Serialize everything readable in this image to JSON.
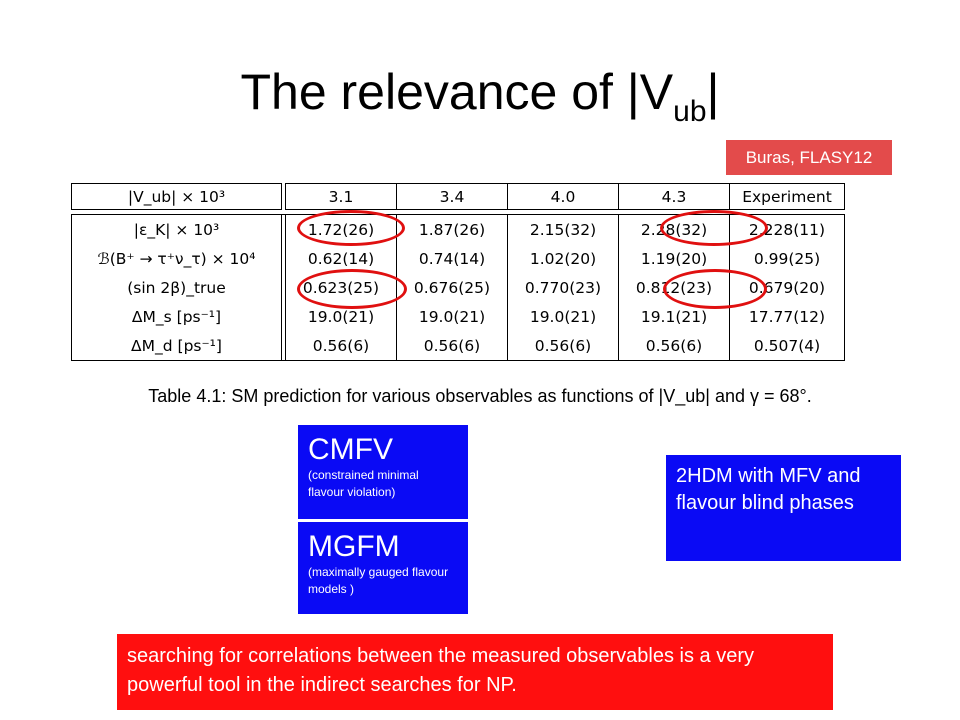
{
  "slide": {
    "title_main": "The relevance of |V",
    "title_sub": "ub",
    "title_end": "|",
    "citation": "Buras, FLASY12"
  },
  "table": {
    "header": [
      "|V_ub| × 10³",
      "3.1",
      "3.4",
      "4.0",
      "4.3",
      "Experiment"
    ],
    "rows": [
      {
        "label": "|ε_K| × 10³",
        "values": [
          "1.72(26)",
          "1.87(26)",
          "2.15(32)",
          "2.28(32)",
          "2.228(11)"
        ]
      },
      {
        "label": "ℬ(B⁺ → τ⁺ν_τ) × 10⁴",
        "values": [
          "0.62(14)",
          "0.74(14)",
          "1.02(20)",
          "1.19(20)",
          "0.99(25)"
        ]
      },
      {
        "label": "(sin 2β)_true",
        "values": [
          "0.623(25)",
          "0.676(25)",
          "0.770(23)",
          "0.812(23)",
          "0.679(20)"
        ]
      },
      {
        "label": "ΔM_s [ps⁻¹]",
        "values": [
          "19.0(21)",
          "19.0(21)",
          "19.0(21)",
          "19.1(21)",
          "17.77(12)"
        ]
      },
      {
        "label": "ΔM_d [ps⁻¹]",
        "values": [
          "0.56(6)",
          "0.56(6)",
          "0.56(6)",
          "0.56(6)",
          "0.507(4)"
        ]
      }
    ],
    "caption": "Table 4.1: SM prediction for various observables as functions of |V_ub| and γ = 68°."
  },
  "boxes": {
    "cmfv_title": "CMFV",
    "cmfv_desc": "(constrained minimal flavour violation)",
    "mgfm_title": "MGFM",
    "mgfm_desc": "(maximally gauged flavour models )",
    "hdm_text": "2HDM with MFV and flavour blind phases"
  },
  "note": "searching for correlations between the measured observables is a very powerful tool in the indirect searches for NP.",
  "colors": {
    "citation_bg": "#e34b4b",
    "box_blue": "#0a0af5",
    "note_red": "#ff0f0f",
    "ring_red": "#e01010"
  }
}
